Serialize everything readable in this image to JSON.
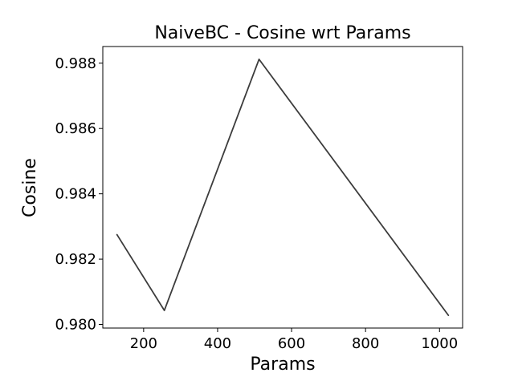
{
  "chart_data": {
    "type": "line",
    "title": "NaiveBC - Cosine wrt Params",
    "xlabel": "Params",
    "ylabel": "Cosine",
    "x": [
      128,
      256,
      512,
      1024
    ],
    "series": [
      {
        "values": [
          0.98275,
          0.98043,
          0.98812,
          0.98028
        ],
        "color": "#3c3c3c"
      }
    ],
    "xlim": [
      89.6,
      1062.4
    ],
    "ylim": [
      0.97989,
      0.98851
    ],
    "xticks": [
      200,
      400,
      600,
      800,
      1000
    ],
    "xtick_labels": [
      "200",
      "400",
      "600",
      "800",
      "1000"
    ],
    "yticks": [
      0.98,
      0.982,
      0.984,
      0.986,
      0.988
    ],
    "ytick_labels": [
      "0.980",
      "0.982",
      "0.984",
      "0.986",
      "0.988"
    ],
    "grid": false,
    "legend": "none"
  }
}
